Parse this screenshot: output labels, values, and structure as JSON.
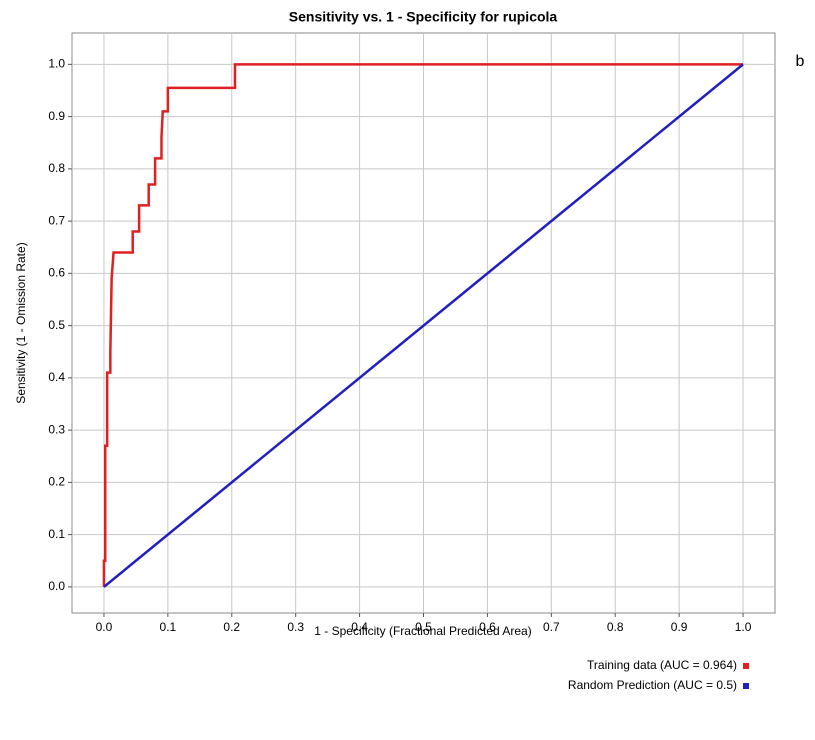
{
  "chart_data": {
    "type": "line",
    "title": "Sensitivity vs. 1 - Specificity for rupicola",
    "x_label": "1 - Specificity  (Fractional Predicted Area)",
    "y_label": "Sensitivity  (1 - Omission Rate)",
    "annotation": "b",
    "xlim": [
      -0.05,
      1.05
    ],
    "ylim": [
      -0.05,
      1.06
    ],
    "xticks": [
      {
        "value": 0,
        "label": "0.0"
      },
      0.1,
      0.2,
      0.3,
      0.4,
      0.5,
      0.6,
      0.7,
      0.8,
      0.9,
      {
        "value": 1,
        "label": "1.0"
      }
    ],
    "yticks": [
      {
        "value": 0,
        "label": "0.0"
      },
      0.1,
      0.2,
      0.3,
      0.4,
      0.5,
      0.6,
      0.7,
      0.8,
      0.9,
      {
        "value": 1,
        "label": "1.0"
      }
    ],
    "grid": true,
    "legend": "bottom-right",
    "series": [
      {
        "name": "Training data (AUC = 0.964)",
        "color": "#e02020",
        "x": [
          0,
          0,
          0.002,
          0.002,
          0.005,
          0.005,
          0.01,
          0.01,
          0.012,
          0.015,
          0.045,
          0.045,
          0.055,
          0.055,
          0.07,
          0.07,
          0.08,
          0.08,
          0.09,
          0.09,
          0.092,
          0.1,
          0.1,
          0.205,
          0.205,
          1
        ],
        "values": [
          0,
          0.05,
          0.05,
          0.27,
          0.27,
          0.41,
          0.41,
          0.45,
          0.59,
          0.64,
          0.64,
          0.68,
          0.68,
          0.73,
          0.73,
          0.77,
          0.77,
          0.82,
          0.82,
          0.86,
          0.91,
          0.91,
          0.955,
          0.955,
          1,
          1
        ]
      },
      {
        "name": "Random Prediction (AUC = 0.5)",
        "color": "#2020c0",
        "x": [
          0,
          1
        ],
        "values": [
          0,
          1
        ]
      }
    ]
  }
}
